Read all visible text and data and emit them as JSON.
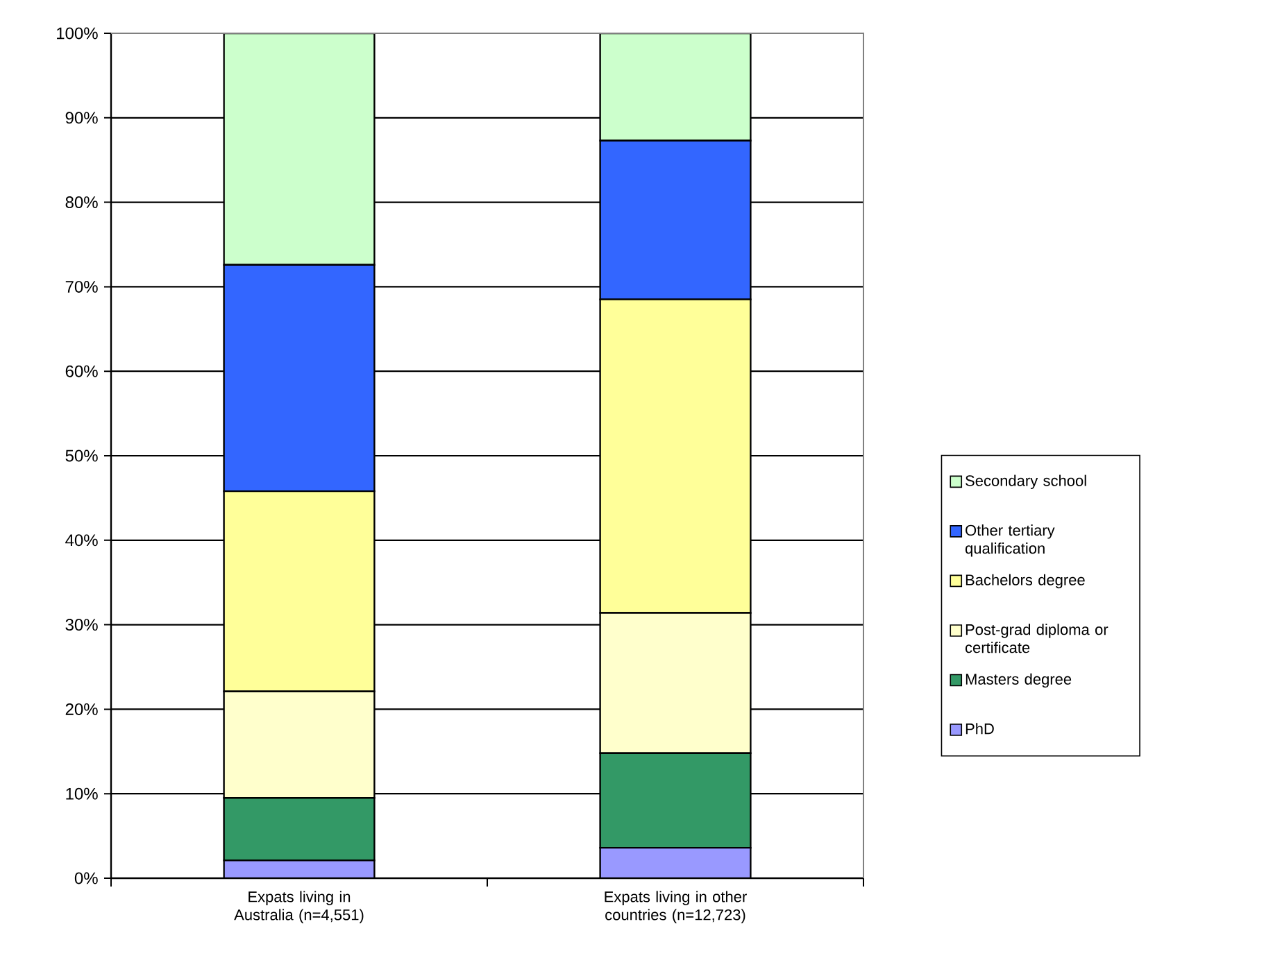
{
  "chart_data": {
    "type": "bar",
    "stacked": true,
    "categories": [
      "Expats living in Australia (n=4,551)",
      "Expats living in other countries (n=12,723)"
    ],
    "series": [
      {
        "name": "PhD",
        "color": "#9999ff",
        "values": [
          2.1,
          3.6
        ]
      },
      {
        "name": "Masters degree",
        "color": "#339966",
        "values": [
          7.4,
          11.2
        ]
      },
      {
        "name": "Post-grad diploma or certificate",
        "color": "#ffffcc",
        "values": [
          12.6,
          16.6
        ]
      },
      {
        "name": "Bachelors degree",
        "color": "#ffff99",
        "values": [
          23.7,
          37.1
        ]
      },
      {
        "name": "Other tertiary qualification",
        "color": "#3366ff",
        "values": [
          26.8,
          18.8
        ]
      },
      {
        "name": "Secondary school",
        "color": "#ccffcc",
        "values": [
          27.4,
          12.7
        ]
      }
    ],
    "ylim": [
      0,
      100
    ],
    "yticks": [
      {
        "value": 0,
        "label": "0%"
      },
      {
        "value": 10,
        "label": "10%"
      },
      {
        "value": 20,
        "label": "20%"
      },
      {
        "value": 30,
        "label": "30%"
      },
      {
        "value": 40,
        "label": "40%"
      },
      {
        "value": 50,
        "label": "50%"
      },
      {
        "value": 60,
        "label": "60%"
      },
      {
        "value": 70,
        "label": "70%"
      },
      {
        "value": 80,
        "label": "80%"
      },
      {
        "value": 90,
        "label": "90%"
      },
      {
        "value": 100,
        "label": "100%"
      }
    ],
    "grid": "y",
    "legend": "right"
  }
}
